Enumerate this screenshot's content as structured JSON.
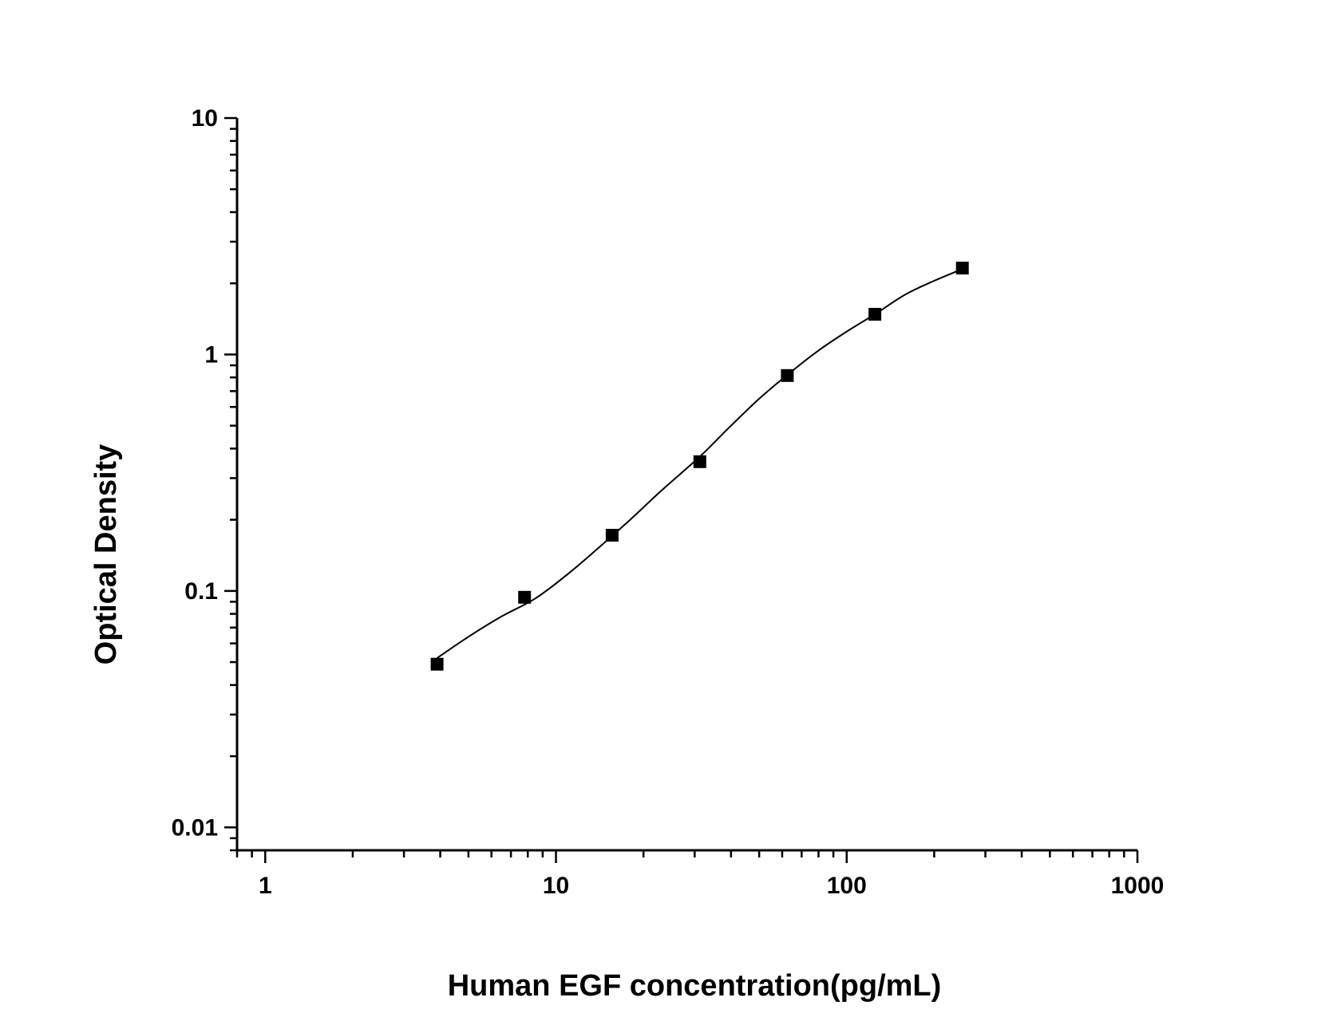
{
  "chart_data": {
    "type": "scatter",
    "xlabel": "Human EGF concentration(pg/mL)",
    "ylabel": "Optical Density",
    "xscale": "log",
    "yscale": "log",
    "xlim": [
      0.8,
      1000
    ],
    "ylim": [
      0.008,
      10
    ],
    "x_ticks": [
      1,
      10,
      100,
      1000
    ],
    "x_tick_labels": [
      "1",
      "10",
      "100",
      "1000"
    ],
    "y_ticks": [
      0.01,
      0.1,
      1,
      10
    ],
    "y_tick_labels": [
      "0.01",
      "0.1",
      "1",
      "10"
    ],
    "grid": false,
    "legend": "none",
    "marker": "square",
    "color": "#000000",
    "series": [
      {
        "x": [
          3.9,
          7.8,
          15.6,
          31.25,
          62.5,
          125,
          250
        ],
        "y": [
          0.049,
          0.094,
          0.172,
          0.352,
          0.815,
          1.48,
          2.32
        ]
      }
    ],
    "fit_curve": {
      "x": [
        3.9,
        5,
        6.5,
        8.5,
        11,
        14,
        18,
        23,
        31.25,
        40,
        50,
        62.5,
        80,
        100,
        125,
        160,
        200,
        250
      ],
      "y": [
        0.052,
        0.064,
        0.078,
        0.093,
        0.118,
        0.152,
        0.2,
        0.265,
        0.37,
        0.5,
        0.65,
        0.82,
        1.04,
        1.25,
        1.48,
        1.8,
        2.05,
        2.3
      ]
    }
  }
}
